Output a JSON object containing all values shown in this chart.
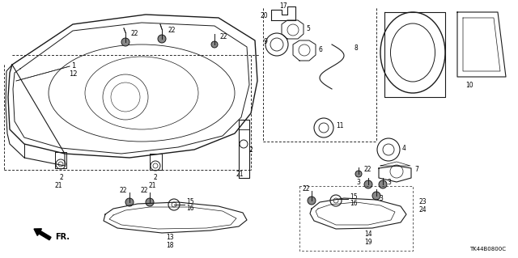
{
  "part_number": "TK44B0800C",
  "bg_color": "#ffffff",
  "line_color": "#1a1a1a",
  "fig_width": 6.4,
  "fig_height": 3.19,
  "dpi": 100
}
